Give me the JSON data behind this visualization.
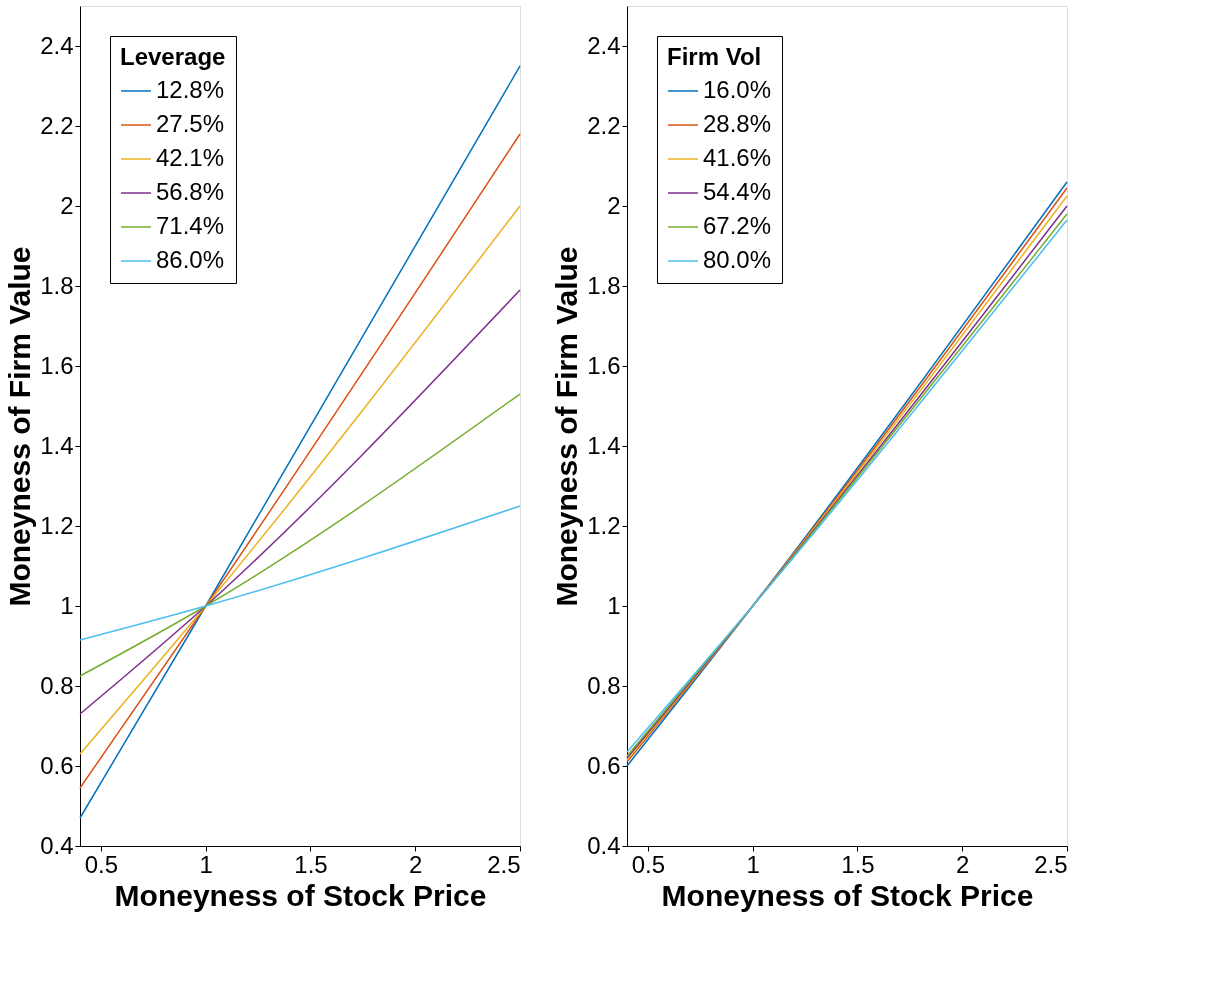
{
  "chart_data": [
    {
      "type": "line",
      "xlabel": "Moneyness of Stock Price",
      "ylabel": "Moneyness of Firm Value",
      "legend_title": "Leverage",
      "legend": "top left",
      "grid": false,
      "xlim": [
        0.4,
        2.5
      ],
      "ylim": [
        0.4,
        2.5
      ],
      "xticks": [
        0.5,
        1,
        1.5,
        2,
        2.5
      ],
      "yticks": [
        0.4,
        0.6,
        0.8,
        1,
        1.2,
        1.4,
        1.6,
        1.8,
        2,
        2.2,
        2.4
      ],
      "x": [
        0.4,
        1,
        2.5
      ],
      "series": [
        {
          "name": "12.8%",
          "color": "#0072bd",
          "values": [
            0.47,
            1.0,
            2.35
          ]
        },
        {
          "name": "27.5%",
          "color": "#d95319",
          "values": [
            0.545,
            1.0,
            2.18
          ]
        },
        {
          "name": "42.1%",
          "color": "#edb120",
          "values": [
            0.63,
            1.0,
            2.0
          ]
        },
        {
          "name": "56.8%",
          "color": "#7e2f8e",
          "values": [
            0.73,
            1.0,
            1.79
          ]
        },
        {
          "name": "71.4%",
          "color": "#77ac30",
          "values": [
            0.825,
            1.0,
            1.53
          ]
        },
        {
          "name": "86.0%",
          "color": "#4dbeee",
          "values": [
            0.915,
            1.0,
            1.25
          ]
        }
      ]
    },
    {
      "type": "line",
      "xlabel": "Moneyness of Stock Price",
      "ylabel": "Moneyness of Firm Value",
      "legend_title": "Firm Vol",
      "legend": "top left",
      "grid": false,
      "xlim": [
        0.4,
        2.5
      ],
      "ylim": [
        0.4,
        2.5
      ],
      "xticks": [
        0.5,
        1,
        1.5,
        2,
        2.5
      ],
      "yticks": [
        0.4,
        0.6,
        0.8,
        1,
        1.2,
        1.4,
        1.6,
        1.8,
        2,
        2.2,
        2.4
      ],
      "x": [
        0.4,
        1,
        2.5
      ],
      "series": [
        {
          "name": "16.0%",
          "color": "#0072bd",
          "values": [
            0.6,
            1.0,
            2.06
          ]
        },
        {
          "name": "28.8%",
          "color": "#d95319",
          "values": [
            0.61,
            1.0,
            2.045
          ]
        },
        {
          "name": "41.6%",
          "color": "#edb120",
          "values": [
            0.615,
            1.0,
            2.025
          ]
        },
        {
          "name": "54.4%",
          "color": "#7e2f8e",
          "values": [
            0.62,
            1.0,
            2.0
          ]
        },
        {
          "name": "67.2%",
          "color": "#77ac30",
          "values": [
            0.625,
            1.0,
            1.98
          ]
        },
        {
          "name": "80.0%",
          "color": "#4dbeee",
          "values": [
            0.635,
            1.0,
            1.965
          ]
        }
      ]
    }
  ]
}
